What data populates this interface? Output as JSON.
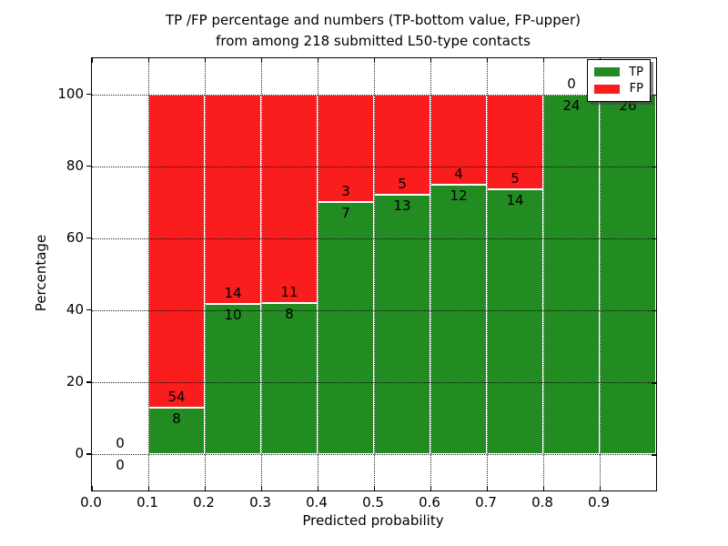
{
  "chart_data": {
    "type": "bar",
    "stacked": true,
    "title": "TP /FP percentage and numbers (TP-bottom value, FP-upper) from among 218 submitted L50-type contacts",
    "title_lines": [
      "TP /FP percentage and numbers (TP-bottom value, FP-upper)",
      "from among 218 submitted L50-type contacts"
    ],
    "xlabel": "Predicted probability",
    "ylabel": "Percentage",
    "xlim": [
      0.0,
      1.0
    ],
    "ylim": [
      -10,
      110
    ],
    "x_tick_labels": [
      "0.0",
      "0.1",
      "0.2",
      "0.3",
      "0.4",
      "0.5",
      "0.6",
      "0.7",
      "0.8",
      "0.9"
    ],
    "y_tick_labels": [
      "0",
      "20",
      "40",
      "60",
      "80",
      "100"
    ],
    "y_tick_values": [
      0,
      20,
      40,
      60,
      80,
      100
    ],
    "grid": true,
    "colors": {
      "tp": "#228b22",
      "fp": "#fa1d1d"
    },
    "legend": {
      "position": "upper right",
      "entries": [
        {
          "label": "TP",
          "color": "#228b22"
        },
        {
          "label": "FP",
          "color": "#fa1d1d"
        }
      ]
    },
    "bins": [
      {
        "range": [
          0.0,
          0.1
        ],
        "tp": 0,
        "fp": 0
      },
      {
        "range": [
          0.1,
          0.2
        ],
        "tp": 8,
        "fp": 54
      },
      {
        "range": [
          0.2,
          0.3
        ],
        "tp": 10,
        "fp": 14
      },
      {
        "range": [
          0.3,
          0.4
        ],
        "tp": 8,
        "fp": 11
      },
      {
        "range": [
          0.4,
          0.5
        ],
        "tp": 7,
        "fp": 3
      },
      {
        "range": [
          0.5,
          0.6
        ],
        "tp": 13,
        "fp": 5
      },
      {
        "range": [
          0.6,
          0.7
        ],
        "tp": 12,
        "fp": 4
      },
      {
        "range": [
          0.7,
          0.8
        ],
        "tp": 14,
        "fp": 5
      },
      {
        "range": [
          0.8,
          0.9
        ],
        "tp": 24,
        "fp": 0
      },
      {
        "range": [
          0.9,
          1.0
        ],
        "tp": 26,
        "fp": 0
      }
    ]
  }
}
